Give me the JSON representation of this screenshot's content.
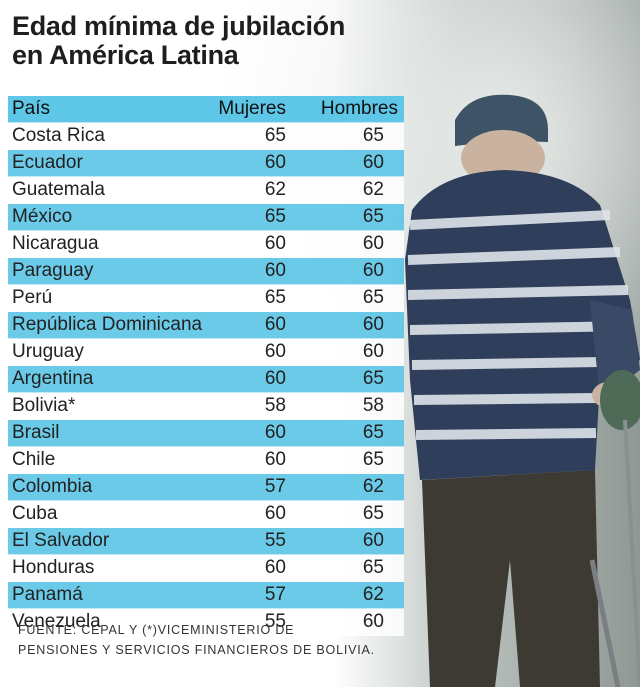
{
  "title_line1": "Edad mínima de jubilación",
  "title_line2": "en América Latina",
  "source_line1": "FUENTE: CEPAL Y (*)VICEMINISTERIO DE",
  "source_line2": "PENSIONES Y SERVICIOS FINANCIEROS DE BOLIVIA.",
  "colors": {
    "row_blue": "#5ec6e6",
    "row_white": "#ffffff",
    "text": "#222222"
  },
  "chart_data": {
    "type": "table",
    "title": "Edad mínima de jubilación en América Latina",
    "columns": [
      "País",
      "Mujeres",
      "Hombres"
    ],
    "rows": [
      [
        "Costa Rica",
        "65",
        "65"
      ],
      [
        "Ecuador",
        "60",
        "60"
      ],
      [
        "Guatemala",
        "62",
        "62"
      ],
      [
        "México",
        "65",
        "65"
      ],
      [
        "Nicaragua",
        "60",
        "60"
      ],
      [
        "Paraguay",
        "60",
        "60"
      ],
      [
        "Perú",
        "65",
        "65"
      ],
      [
        "República Dominicana",
        "60",
        "60"
      ],
      [
        "Uruguay",
        "60",
        "60"
      ],
      [
        "Argentina",
        "60",
        "65"
      ],
      [
        "Bolivia*",
        "58",
        "58"
      ],
      [
        "Brasil",
        "60",
        "65"
      ],
      [
        "Chile",
        "60",
        "65"
      ],
      [
        "Colombia",
        "57",
        "62"
      ],
      [
        "Cuba",
        "60",
        "65"
      ],
      [
        "El Salvador",
        "55",
        "60"
      ],
      [
        "Honduras",
        "60",
        "65"
      ],
      [
        "Panamá",
        "57",
        "62"
      ],
      [
        "Venezuela",
        "55",
        "60"
      ]
    ]
  }
}
